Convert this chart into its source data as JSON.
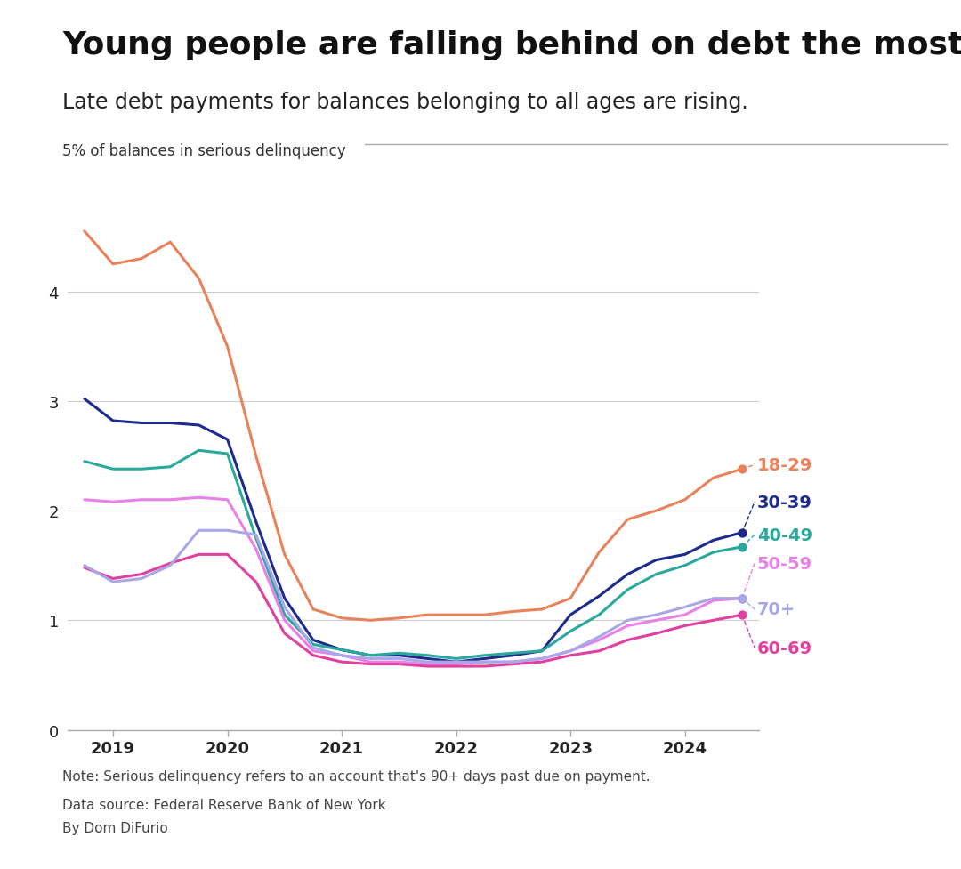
{
  "title": "Young people are falling behind on debt the most",
  "subtitle": "Late debt payments for balances belonging to all ages are rising.",
  "ylabel": "5% of balances in serious delinquency",
  "background_color": "#ffffff",
  "series": {
    "18-29": {
      "color": "#E8825A",
      "x": [
        2018.75,
        2019.0,
        2019.25,
        2019.5,
        2019.75,
        2020.0,
        2020.25,
        2020.5,
        2020.75,
        2021.0,
        2021.25,
        2021.5,
        2021.75,
        2022.0,
        2022.25,
        2022.5,
        2022.75,
        2023.0,
        2023.25,
        2023.5,
        2023.75,
        2024.0,
        2024.25,
        2024.5
      ],
      "y": [
        4.55,
        4.25,
        4.3,
        4.45,
        4.12,
        3.5,
        2.5,
        1.6,
        1.1,
        1.02,
        1.0,
        1.02,
        1.05,
        1.05,
        1.05,
        1.08,
        1.1,
        1.2,
        1.62,
        1.92,
        2.0,
        2.1,
        2.3,
        2.38
      ]
    },
    "30-39": {
      "color": "#1C2B8C",
      "x": [
        2018.75,
        2019.0,
        2019.25,
        2019.5,
        2019.75,
        2020.0,
        2020.25,
        2020.5,
        2020.75,
        2021.0,
        2021.25,
        2021.5,
        2021.75,
        2022.0,
        2022.25,
        2022.5,
        2022.75,
        2023.0,
        2023.25,
        2023.5,
        2023.75,
        2024.0,
        2024.25,
        2024.5
      ],
      "y": [
        3.02,
        2.82,
        2.8,
        2.8,
        2.78,
        2.65,
        1.9,
        1.2,
        0.82,
        0.73,
        0.68,
        0.68,
        0.65,
        0.62,
        0.65,
        0.68,
        0.72,
        1.05,
        1.22,
        1.42,
        1.55,
        1.6,
        1.73,
        1.8
      ]
    },
    "40-49": {
      "color": "#2BA89E",
      "x": [
        2018.75,
        2019.0,
        2019.25,
        2019.5,
        2019.75,
        2020.0,
        2020.25,
        2020.5,
        2020.75,
        2021.0,
        2021.25,
        2021.5,
        2021.75,
        2022.0,
        2022.25,
        2022.5,
        2022.75,
        2023.0,
        2023.25,
        2023.5,
        2023.75,
        2024.0,
        2024.25,
        2024.5
      ],
      "y": [
        2.45,
        2.38,
        2.38,
        2.4,
        2.55,
        2.52,
        1.75,
        1.05,
        0.78,
        0.73,
        0.68,
        0.7,
        0.68,
        0.65,
        0.68,
        0.7,
        0.72,
        0.9,
        1.05,
        1.28,
        1.42,
        1.5,
        1.62,
        1.67
      ]
    },
    "50-59": {
      "color": "#E880E8",
      "x": [
        2018.75,
        2019.0,
        2019.25,
        2019.5,
        2019.75,
        2020.0,
        2020.25,
        2020.5,
        2020.75,
        2021.0,
        2021.25,
        2021.5,
        2021.75,
        2022.0,
        2022.25,
        2022.5,
        2022.75,
        2023.0,
        2023.25,
        2023.5,
        2023.75,
        2024.0,
        2024.25,
        2024.5
      ],
      "y": [
        2.1,
        2.08,
        2.1,
        2.1,
        2.12,
        2.1,
        1.65,
        1.0,
        0.72,
        0.68,
        0.62,
        0.62,
        0.6,
        0.6,
        0.62,
        0.62,
        0.65,
        0.72,
        0.82,
        0.95,
        1.0,
        1.05,
        1.18,
        1.2
      ]
    },
    "60-69": {
      "color": "#E040A0",
      "x": [
        2018.75,
        2019.0,
        2019.25,
        2019.5,
        2019.75,
        2020.0,
        2020.25,
        2020.5,
        2020.75,
        2021.0,
        2021.25,
        2021.5,
        2021.75,
        2022.0,
        2022.25,
        2022.5,
        2022.75,
        2023.0,
        2023.25,
        2023.5,
        2023.75,
        2024.0,
        2024.25,
        2024.5
      ],
      "y": [
        1.48,
        1.38,
        1.42,
        1.52,
        1.6,
        1.6,
        1.35,
        0.88,
        0.68,
        0.62,
        0.6,
        0.6,
        0.58,
        0.58,
        0.58,
        0.6,
        0.62,
        0.68,
        0.72,
        0.82,
        0.88,
        0.95,
        1.0,
        1.05
      ]
    },
    "70+": {
      "color": "#A8A8E8",
      "x": [
        2018.75,
        2019.0,
        2019.25,
        2019.5,
        2019.75,
        2020.0,
        2020.25,
        2020.5,
        2020.75,
        2021.0,
        2021.25,
        2021.5,
        2021.75,
        2022.0,
        2022.25,
        2022.5,
        2022.75,
        2023.0,
        2023.25,
        2023.5,
        2023.75,
        2024.0,
        2024.25,
        2024.5
      ],
      "y": [
        1.5,
        1.35,
        1.38,
        1.5,
        1.82,
        1.82,
        1.78,
        1.12,
        0.75,
        0.68,
        0.65,
        0.65,
        0.62,
        0.62,
        0.62,
        0.62,
        0.65,
        0.72,
        0.85,
        1.0,
        1.05,
        1.12,
        1.2,
        1.2
      ]
    }
  },
  "legend_colors": {
    "18-29": "#E8825A",
    "30-39": "#1C2B8C",
    "40-49": "#2BA89E",
    "50-59": "#E880E8",
    "60-69": "#E040A0",
    "70+": "#A8A8E8"
  },
  "ylim": [
    0,
    5.0
  ],
  "yticks": [
    0,
    1,
    2,
    3,
    4
  ],
  "xtick_positions": [
    2019.0,
    2020.0,
    2021.0,
    2022.0,
    2023.0,
    2024.0
  ],
  "note": "Note: Serious delinquency refers to an account that's 90+ days past due on payment.",
  "source": "Data source: Federal Reserve Bank of New York",
  "author": "By Dom DiFurio"
}
